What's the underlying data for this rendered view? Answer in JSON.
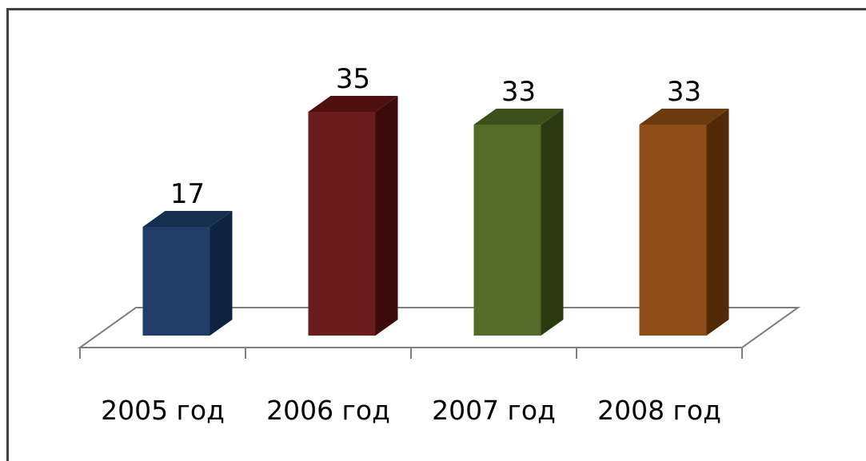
{
  "chart_data": {
    "type": "bar",
    "categories": [
      "2005 год",
      "2006 год",
      "2007 год",
      "2008 год"
    ],
    "values": [
      17,
      35,
      33,
      33
    ],
    "data_labels": [
      "17",
      "35",
      "33",
      "33"
    ],
    "colors": [
      "#1f3d66",
      "#6b1c1c",
      "#556b27",
      "#8f4e17"
    ],
    "side_colors": [
      "#0e2340",
      "#3c0a0a",
      "#2c3a10",
      "#532a07"
    ],
    "top_colors": [
      "#15304f",
      "#4f1010",
      "#3d4f1a",
      "#6b3a0e"
    ],
    "title": "",
    "xlabel": "",
    "ylabel": "",
    "ylim": [
      0,
      35
    ],
    "grid": false,
    "legend": "none",
    "style": "3d-column"
  }
}
